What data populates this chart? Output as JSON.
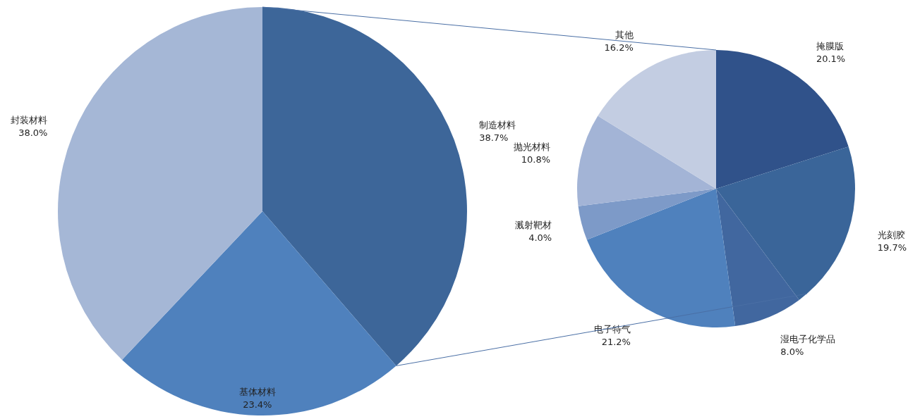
{
  "chart_data": [
    {
      "type": "pie",
      "categories": [
        "制造材料",
        "基体材料",
        "封装材料"
      ],
      "values": [
        38.7,
        23.4,
        38.0
      ],
      "value_labels": [
        "38.7%",
        "23.4%",
        "38.0%"
      ],
      "colors": [
        "#3d6699",
        "#4f81bd",
        "#a5b7d6"
      ]
    },
    {
      "type": "pie",
      "categories": [
        "掩膜版",
        "光刻胶",
        "湿电子化学品",
        "电子特气",
        "溅射靶材",
        "抛光材料",
        "其他"
      ],
      "values": [
        20.1,
        19.7,
        8.0,
        21.2,
        4.0,
        10.8,
        16.2
      ],
      "value_labels": [
        "20.1%",
        "19.7%",
        "8.0%",
        "21.2%",
        "4.0%",
        "10.8%",
        "16.2%"
      ],
      "colors": [
        "#30528a",
        "#3a6599",
        "#41679f",
        "#4f81bd",
        "#7d9ac8",
        "#a3b4d6",
        "#c3cde2"
      ]
    }
  ]
}
